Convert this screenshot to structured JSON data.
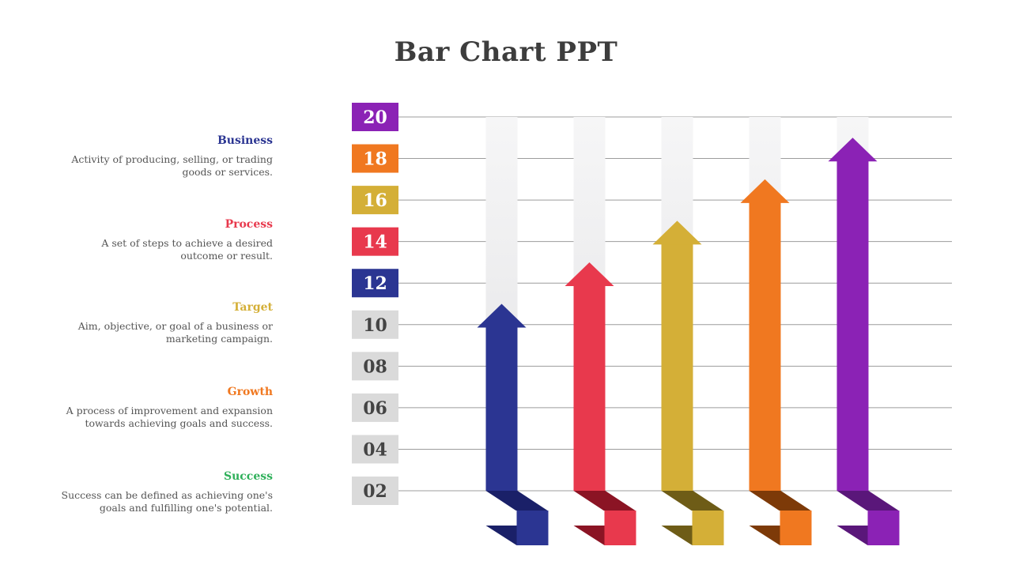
{
  "title": "Bar Chart PPT",
  "legend": [
    {
      "label": "Business",
      "color": "#2b3592",
      "desc_line1": "Activity of producing, selling, or trading",
      "desc_line2": "goods or services."
    },
    {
      "label": "Process",
      "color": "#e8394d",
      "desc_line1": "A set of steps to achieve a desired",
      "desc_line2": "outcome or result."
    },
    {
      "label": "Target",
      "color": "#d4af37",
      "desc_line1": "Aim, objective, or goal of a business or",
      "desc_line2": "marketing campaign."
    },
    {
      "label": "Growth",
      "color": "#f07820",
      "desc_line1": "A process of improvement and expansion",
      "desc_line2": "towards achieving goals and success."
    },
    {
      "label": "Success",
      "color": "#2fb05a",
      "desc_line1": "Success can be defined as achieving one's",
      "desc_line2": "goals and fulfilling one's potential."
    }
  ],
  "chart_data": {
    "type": "bar",
    "title": "",
    "y_ticks": [
      "02",
      "04",
      "06",
      "08",
      "10",
      "12",
      "14",
      "16",
      "18",
      "20"
    ],
    "y_tick_colors": [
      "#dadada",
      "#dadada",
      "#dadada",
      "#dadada",
      "#dadada",
      "#2b3592",
      "#e8394d",
      "#d4af37",
      "#f07820",
      "#8b22b5"
    ],
    "ylim": [
      2,
      20
    ],
    "grid": true,
    "series": [
      {
        "value": 11,
        "color": "#2b3592",
        "dark": "#1a2068"
      },
      {
        "value": 13,
        "color": "#e8394d",
        "dark": "#8b1424"
      },
      {
        "value": 15,
        "color": "#d4af37",
        "dark": "#6e5c17"
      },
      {
        "value": 17,
        "color": "#f07820",
        "dark": "#7d3a08"
      },
      {
        "value": 19,
        "color": "#8b22b5",
        "dark": "#5a177a"
      }
    ]
  }
}
